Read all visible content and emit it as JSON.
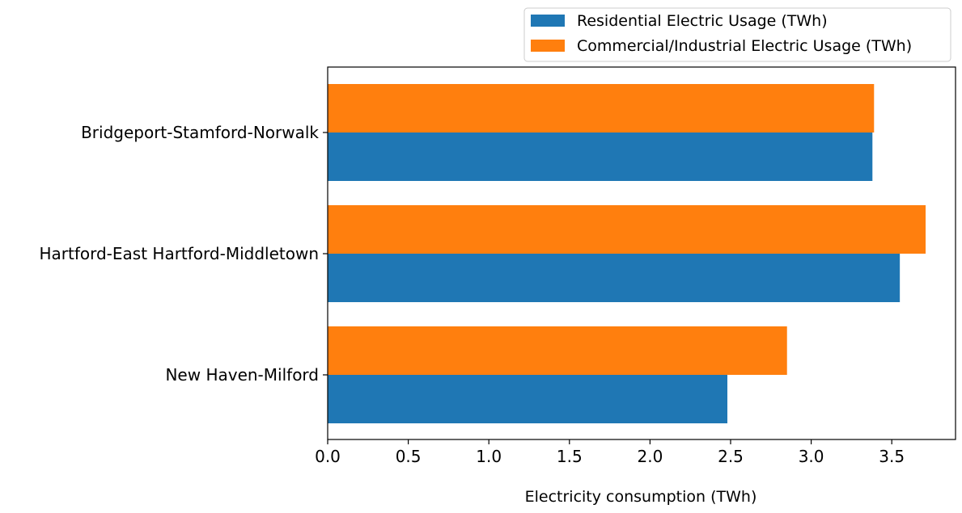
{
  "chart_data": {
    "type": "bar",
    "orientation": "horizontal",
    "categories": [
      "Bridgeport-Stamford-Norwalk",
      "Hartford-East Hartford-Middletown",
      "New Haven-Milford"
    ],
    "series": [
      {
        "name": "Residential Electric Usage (TWh)",
        "color": "#1f77b4",
        "values": [
          3.38,
          3.55,
          2.48
        ]
      },
      {
        "name": "Commercial/Industrial Electric Usage (TWh)",
        "color": "#ff7f0e",
        "values": [
          3.39,
          3.71,
          2.85
        ]
      }
    ],
    "xlabel": "Electricity consumption (TWh)",
    "ylabel": "",
    "xlim": [
      0,
      3.9
    ],
    "xticks": [
      0.0,
      0.5,
      1.0,
      1.5,
      2.0,
      2.5,
      3.0,
      3.5
    ],
    "xtick_labels": [
      "0.0",
      "0.5",
      "1.0",
      "1.5",
      "2.0",
      "2.5",
      "3.0",
      "3.5"
    ],
    "grid": false,
    "legend_position": "top-right, above plot"
  }
}
